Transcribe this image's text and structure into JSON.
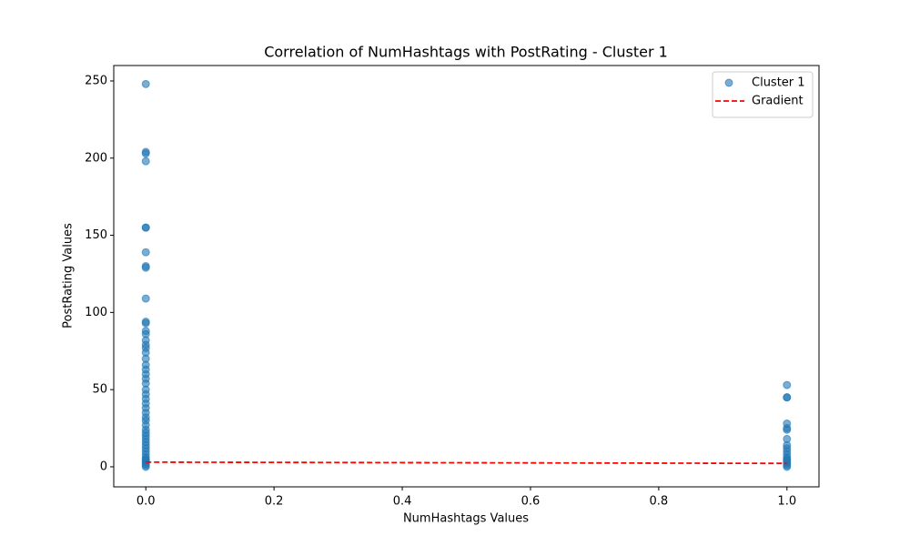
{
  "chart_data": {
    "type": "scatter",
    "title": "Correlation of NumHashtags with PostRating - Cluster 1",
    "x_label": "NumHashtags Values",
    "y_label": "PostRating Values",
    "xlim": [
      -0.05,
      1.05
    ],
    "ylim": [
      -13,
      260
    ],
    "xticks": [
      {
        "value": 0,
        "label": "0.0"
      },
      0.2,
      0.4,
      0.6,
      0.8,
      {
        "value": 1,
        "label": "1.0"
      }
    ],
    "yticks": [
      0,
      50,
      100,
      150,
      200,
      250
    ],
    "legend": "upper right",
    "series": [
      {
        "name": "Cluster 1",
        "type": "scatter",
        "color": "#1f77b4",
        "x": [
          0,
          0,
          0,
          0,
          0,
          0,
          0,
          0,
          0,
          0,
          0,
          0,
          0,
          0,
          0,
          0,
          0,
          0,
          0,
          0,
          0,
          0,
          0,
          0,
          0,
          0,
          0,
          0,
          0,
          0,
          0,
          0,
          0,
          0,
          0,
          0,
          0,
          0,
          0,
          0,
          0,
          0,
          0,
          0,
          0,
          0,
          0,
          0,
          0,
          1,
          1,
          1,
          1,
          1,
          1,
          1,
          1,
          1,
          1,
          1,
          1,
          1,
          1,
          1,
          1,
          1,
          1
        ],
        "values": [
          248,
          204,
          203,
          198,
          155,
          155,
          139,
          130,
          129,
          109,
          94,
          93,
          88,
          86,
          82,
          79,
          77,
          74,
          70,
          66,
          63,
          60,
          57,
          54,
          50,
          47,
          44,
          41,
          38,
          35,
          32,
          30,
          27,
          24,
          22,
          20,
          18,
          16,
          14,
          12,
          10,
          8,
          6,
          5,
          4,
          3,
          2,
          1,
          0,
          53,
          45,
          45,
          28,
          25,
          24,
          18,
          14,
          12,
          10,
          8,
          6,
          5,
          4,
          3,
          2,
          1,
          0
        ]
      },
      {
        "name": "Gradient",
        "type": "line",
        "color": "#ff0000",
        "dashed": true,
        "x": [
          0,
          1
        ],
        "values": [
          3.0,
          2.2
        ]
      }
    ]
  }
}
